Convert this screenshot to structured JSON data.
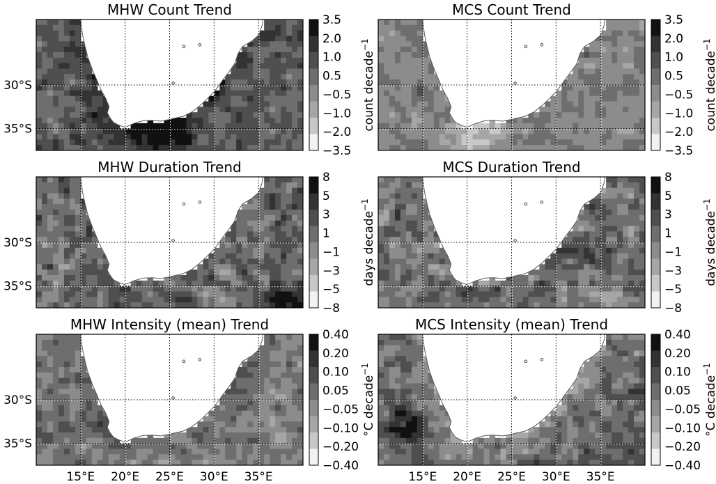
{
  "figure": {
    "latitude_tick_labels": [
      "30°S",
      "35°S"
    ],
    "longitude_tick_labels": [
      "15°E",
      "20°E",
      "25°E",
      "30°E",
      "35°E"
    ],
    "map_extent": {
      "lon_min": 10,
      "lon_max": 40,
      "lat_min": -37.5,
      "lat_max": -22.5
    },
    "gridlines": {
      "lon": [
        15,
        20,
        25,
        30,
        35
      ],
      "lat": [
        -30,
        -35
      ],
      "style": "dotted"
    },
    "colormap": "grayscale (light = negative, dark = positive)"
  },
  "chart_data": [
    {
      "type": "heatmap",
      "title": "MHW Count Trend",
      "colorbar_ticks": [
        "3.5",
        "2.0",
        "1.0",
        "0.5",
        "−0.5",
        "−1.0",
        "−2.0",
        "−3.5"
      ],
      "colorbar_levels": [
        3.5,
        2.0,
        1.0,
        0.5,
        -0.5,
        -1.0,
        -2.0,
        -3.5
      ],
      "units_base": "count decade",
      "units_sup": "−1",
      "pattern": {
        "base": 0.25,
        "coast_amp": 0.4,
        "warm_lon": 24,
        "warm_lat": -35.5,
        "warm_amp": 0.9,
        "noise": 0.22,
        "seed": 1
      }
    },
    {
      "type": "heatmap",
      "title": "MCS Count Trend",
      "colorbar_ticks": [
        "3.5",
        "2.0",
        "1.0",
        "0.5",
        "−0.5",
        "−1.0",
        "−2.0",
        "−3.5"
      ],
      "colorbar_levels": [
        3.5,
        2.0,
        1.0,
        0.5,
        -0.5,
        -1.0,
        -2.0,
        -3.5
      ],
      "units_base": "count decade",
      "units_sup": "−1",
      "pattern": {
        "base": -0.05,
        "coast_amp": 0.05,
        "warm_lon": 21,
        "warm_lat": -35.5,
        "warm_amp": -0.6,
        "noise": 0.18,
        "seed": 2
      }
    },
    {
      "type": "heatmap",
      "title": "MHW Duration Trend",
      "colorbar_ticks": [
        "8",
        "5",
        "3",
        "1",
        "−1",
        "−3",
        "−5",
        "−8"
      ],
      "colorbar_levels": [
        8,
        5,
        3,
        1,
        -1,
        -3,
        -5,
        -8
      ],
      "units_base": "days decade",
      "units_sup": "−1",
      "pattern": {
        "base": 0.15,
        "coast_amp": 0.1,
        "warm_lon": 38,
        "warm_lat": -37,
        "warm_amp": 0.7,
        "noise": 0.3,
        "seed": 3
      }
    },
    {
      "type": "heatmap",
      "title": "MCS Duration Trend",
      "colorbar_ticks": [
        "8",
        "5",
        "3",
        "1",
        "−1",
        "−3",
        "−5",
        "−8"
      ],
      "colorbar_levels": [
        8,
        5,
        3,
        1,
        -1,
        -3,
        -5,
        -8
      ],
      "units_base": "days decade",
      "units_sup": "−1",
      "pattern": {
        "base": 0.05,
        "coast_amp": 0.05,
        "warm_lon": 33,
        "warm_lat": -31,
        "warm_amp": 0.4,
        "noise": 0.28,
        "seed": 4
      }
    },
    {
      "type": "heatmap",
      "title": "MHW Intensity (mean) Trend",
      "colorbar_ticks": [
        "0.40",
        "0.20",
        "0.10",
        "0.05",
        "−0.05",
        "−0.10",
        "−0.20",
        "−0.40"
      ],
      "colorbar_levels": [
        0.4,
        0.2,
        0.1,
        0.05,
        -0.05,
        -0.1,
        -0.2,
        -0.4
      ],
      "units_base": "°C decade",
      "units_sup": "−1",
      "pattern": {
        "base": 0.0,
        "coast_amp": 0.15,
        "warm_lon": 17,
        "warm_lat": -33,
        "warm_amp": 0.3,
        "noise": 0.22,
        "seed": 5
      }
    },
    {
      "type": "heatmap",
      "title": "MCS Intensity (mean) Trend",
      "colorbar_ticks": [
        "0.40",
        "0.20",
        "0.10",
        "0.05",
        "−0.05",
        "−0.10",
        "−0.20",
        "−0.40"
      ],
      "colorbar_levels": [
        0.4,
        0.2,
        0.1,
        0.05,
        -0.05,
        -0.1,
        -0.2,
        -0.4
      ],
      "units_base": "°C decade",
      "units_sup": "−1",
      "pattern": {
        "base": 0.2,
        "coast_amp": -0.5,
        "warm_lon": 13,
        "warm_lat": -33,
        "warm_amp": 0.5,
        "noise": 0.25,
        "seed": 6
      }
    }
  ]
}
